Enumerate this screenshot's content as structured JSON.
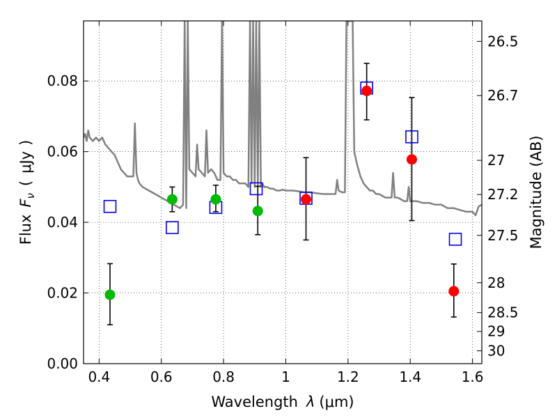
{
  "chart_data": {
    "type": "scatter",
    "xlabel_prefix": "Wavelength",
    "xlabel_symbol": "λ",
    "xlabel_unit": "(μm)",
    "ylabel_prefix": "Flux",
    "ylabel_symbol": "F",
    "ylabel_subscript": "ν",
    "ylabel_unit": "μJy",
    "y2label": "Magnitude (AB)",
    "xlim": [
      0.35,
      1.63
    ],
    "ylim": [
      0.0,
      0.097
    ],
    "x_ticks": [
      0.4,
      0.6,
      0.8,
      1.0,
      1.2,
      1.4,
      1.6
    ],
    "x_tick_labels": [
      "0.4",
      "0.6",
      "0.8",
      "1",
      "1.2",
      "1.4",
      "1.6"
    ],
    "y_ticks": [
      0.0,
      0.02,
      0.04,
      0.06,
      0.08
    ],
    "y_tick_labels": [
      "0.00",
      "0.02",
      "0.04",
      "0.06",
      "0.08"
    ],
    "mag_ticks": [
      26.5,
      26.7,
      27,
      27.2,
      27.5,
      28,
      28.5,
      29,
      30
    ],
    "mag_tick_labels": [
      "26.5",
      "26.7",
      "27",
      "27.2",
      "27.5",
      "28",
      "28.5",
      "29",
      "30"
    ],
    "grid": true,
    "colors": {
      "green": "#00bb00",
      "red": "#ff0000",
      "blue_open": "#0000ee",
      "model": "#808080",
      "errorbar": "#000000"
    },
    "series": [
      {
        "marker": "circle",
        "color": "#00bb00",
        "x": [
          0.435,
          0.635,
          0.775,
          0.91
        ],
        "y": [
          0.0195,
          0.0465,
          0.0465,
          0.0432
        ],
        "yerr_low": [
          0.011,
          0.043,
          0.043,
          0.0365
        ],
        "yerr_high": [
          0.0283,
          0.05,
          0.0505,
          0.0502
        ]
      },
      {
        "marker": "circle",
        "color": "#ff0000",
        "x": [
          1.065,
          1.26,
          1.405,
          1.54
        ],
        "y": [
          0.0465,
          0.0772,
          0.0578,
          0.0205
        ],
        "yerr_low": [
          0.035,
          0.069,
          0.0405,
          0.0132
        ],
        "yerr_high": [
          0.0583,
          0.085,
          0.0753,
          0.0282
        ]
      },
      {
        "marker": "open-square",
        "color": "#0000ee",
        "x": [
          0.435,
          0.635,
          0.775,
          0.905,
          1.065,
          1.26,
          1.405,
          1.545
        ],
        "y": [
          0.0445,
          0.0385,
          0.0442,
          0.0495,
          0.0468,
          0.078,
          0.0642,
          0.0352
        ]
      },
      {
        "marker": "line",
        "color": "#808080",
        "x": [
          0.35,
          0.355,
          0.36,
          0.365,
          0.37,
          0.38,
          0.39,
          0.4,
          0.41,
          0.42,
          0.43,
          0.44,
          0.45,
          0.46,
          0.47,
          0.48,
          0.49,
          0.5,
          0.51,
          0.515,
          0.52,
          0.525,
          0.53,
          0.54,
          0.56,
          0.58,
          0.6,
          0.62,
          0.64,
          0.66,
          0.67,
          0.675,
          0.68,
          0.685,
          0.69,
          0.7,
          0.71,
          0.715,
          0.72,
          0.73,
          0.74,
          0.745,
          0.75,
          0.76,
          0.77,
          0.78,
          0.79,
          0.795,
          0.8,
          0.81,
          0.82,
          0.83,
          0.84,
          0.85,
          0.86,
          0.87,
          0.88,
          0.885,
          0.89,
          0.895,
          0.9,
          0.905,
          0.91,
          0.915,
          0.92,
          0.925,
          0.93,
          0.94,
          0.95,
          0.96,
          0.97,
          0.98,
          0.99,
          1.0,
          1.02,
          1.04,
          1.06,
          1.08,
          1.1,
          1.12,
          1.14,
          1.16,
          1.165,
          1.17,
          1.18,
          1.19,
          1.195,
          1.2,
          1.21,
          1.215,
          1.22,
          1.23,
          1.24,
          1.25,
          1.26,
          1.27,
          1.28,
          1.29,
          1.3,
          1.32,
          1.34,
          1.345,
          1.35,
          1.36,
          1.38,
          1.39,
          1.395,
          1.4,
          1.42,
          1.44,
          1.46,
          1.48,
          1.5,
          1.52,
          1.54,
          1.56,
          1.58,
          1.6,
          1.61,
          1.62,
          1.63
        ],
        "y": [
          0.064,
          0.065,
          0.063,
          0.066,
          0.064,
          0.063,
          0.064,
          0.063,
          0.064,
          0.062,
          0.061,
          0.06,
          0.059,
          0.057,
          0.055,
          0.054,
          0.053,
          0.053,
          0.053,
          0.068,
          0.054,
          0.052,
          0.051,
          0.05,
          0.049,
          0.048,
          0.047,
          0.046,
          0.045,
          0.044,
          0.045,
          0.097,
          0.044,
          0.097,
          0.055,
          0.054,
          0.053,
          0.062,
          0.055,
          0.054,
          0.053,
          0.066,
          0.054,
          0.055,
          0.054,
          0.052,
          0.052,
          0.097,
          0.054,
          0.053,
          0.053,
          0.052,
          0.052,
          0.051,
          0.051,
          0.051,
          0.05,
          0.097,
          0.051,
          0.097,
          0.05,
          0.097,
          0.05,
          0.097,
          0.05,
          0.051,
          0.05,
          0.05,
          0.0495,
          0.0495,
          0.049,
          0.049,
          0.0492,
          0.049,
          0.049,
          0.0488,
          0.0485,
          0.0485,
          0.0482,
          0.048,
          0.048,
          0.048,
          0.052,
          0.049,
          0.0485,
          0.0485,
          0.097,
          0.097,
          0.097,
          0.097,
          0.06,
          0.056,
          0.053,
          0.051,
          0.05,
          0.049,
          0.049,
          0.048,
          0.048,
          0.047,
          0.047,
          0.054,
          0.047,
          0.047,
          0.046,
          0.046,
          0.05,
          0.046,
          0.046,
          0.0455,
          0.0455,
          0.045,
          0.045,
          0.044,
          0.044,
          0.0435,
          0.043,
          0.043,
          0.042,
          0.0445,
          0.045
        ]
      }
    ]
  }
}
